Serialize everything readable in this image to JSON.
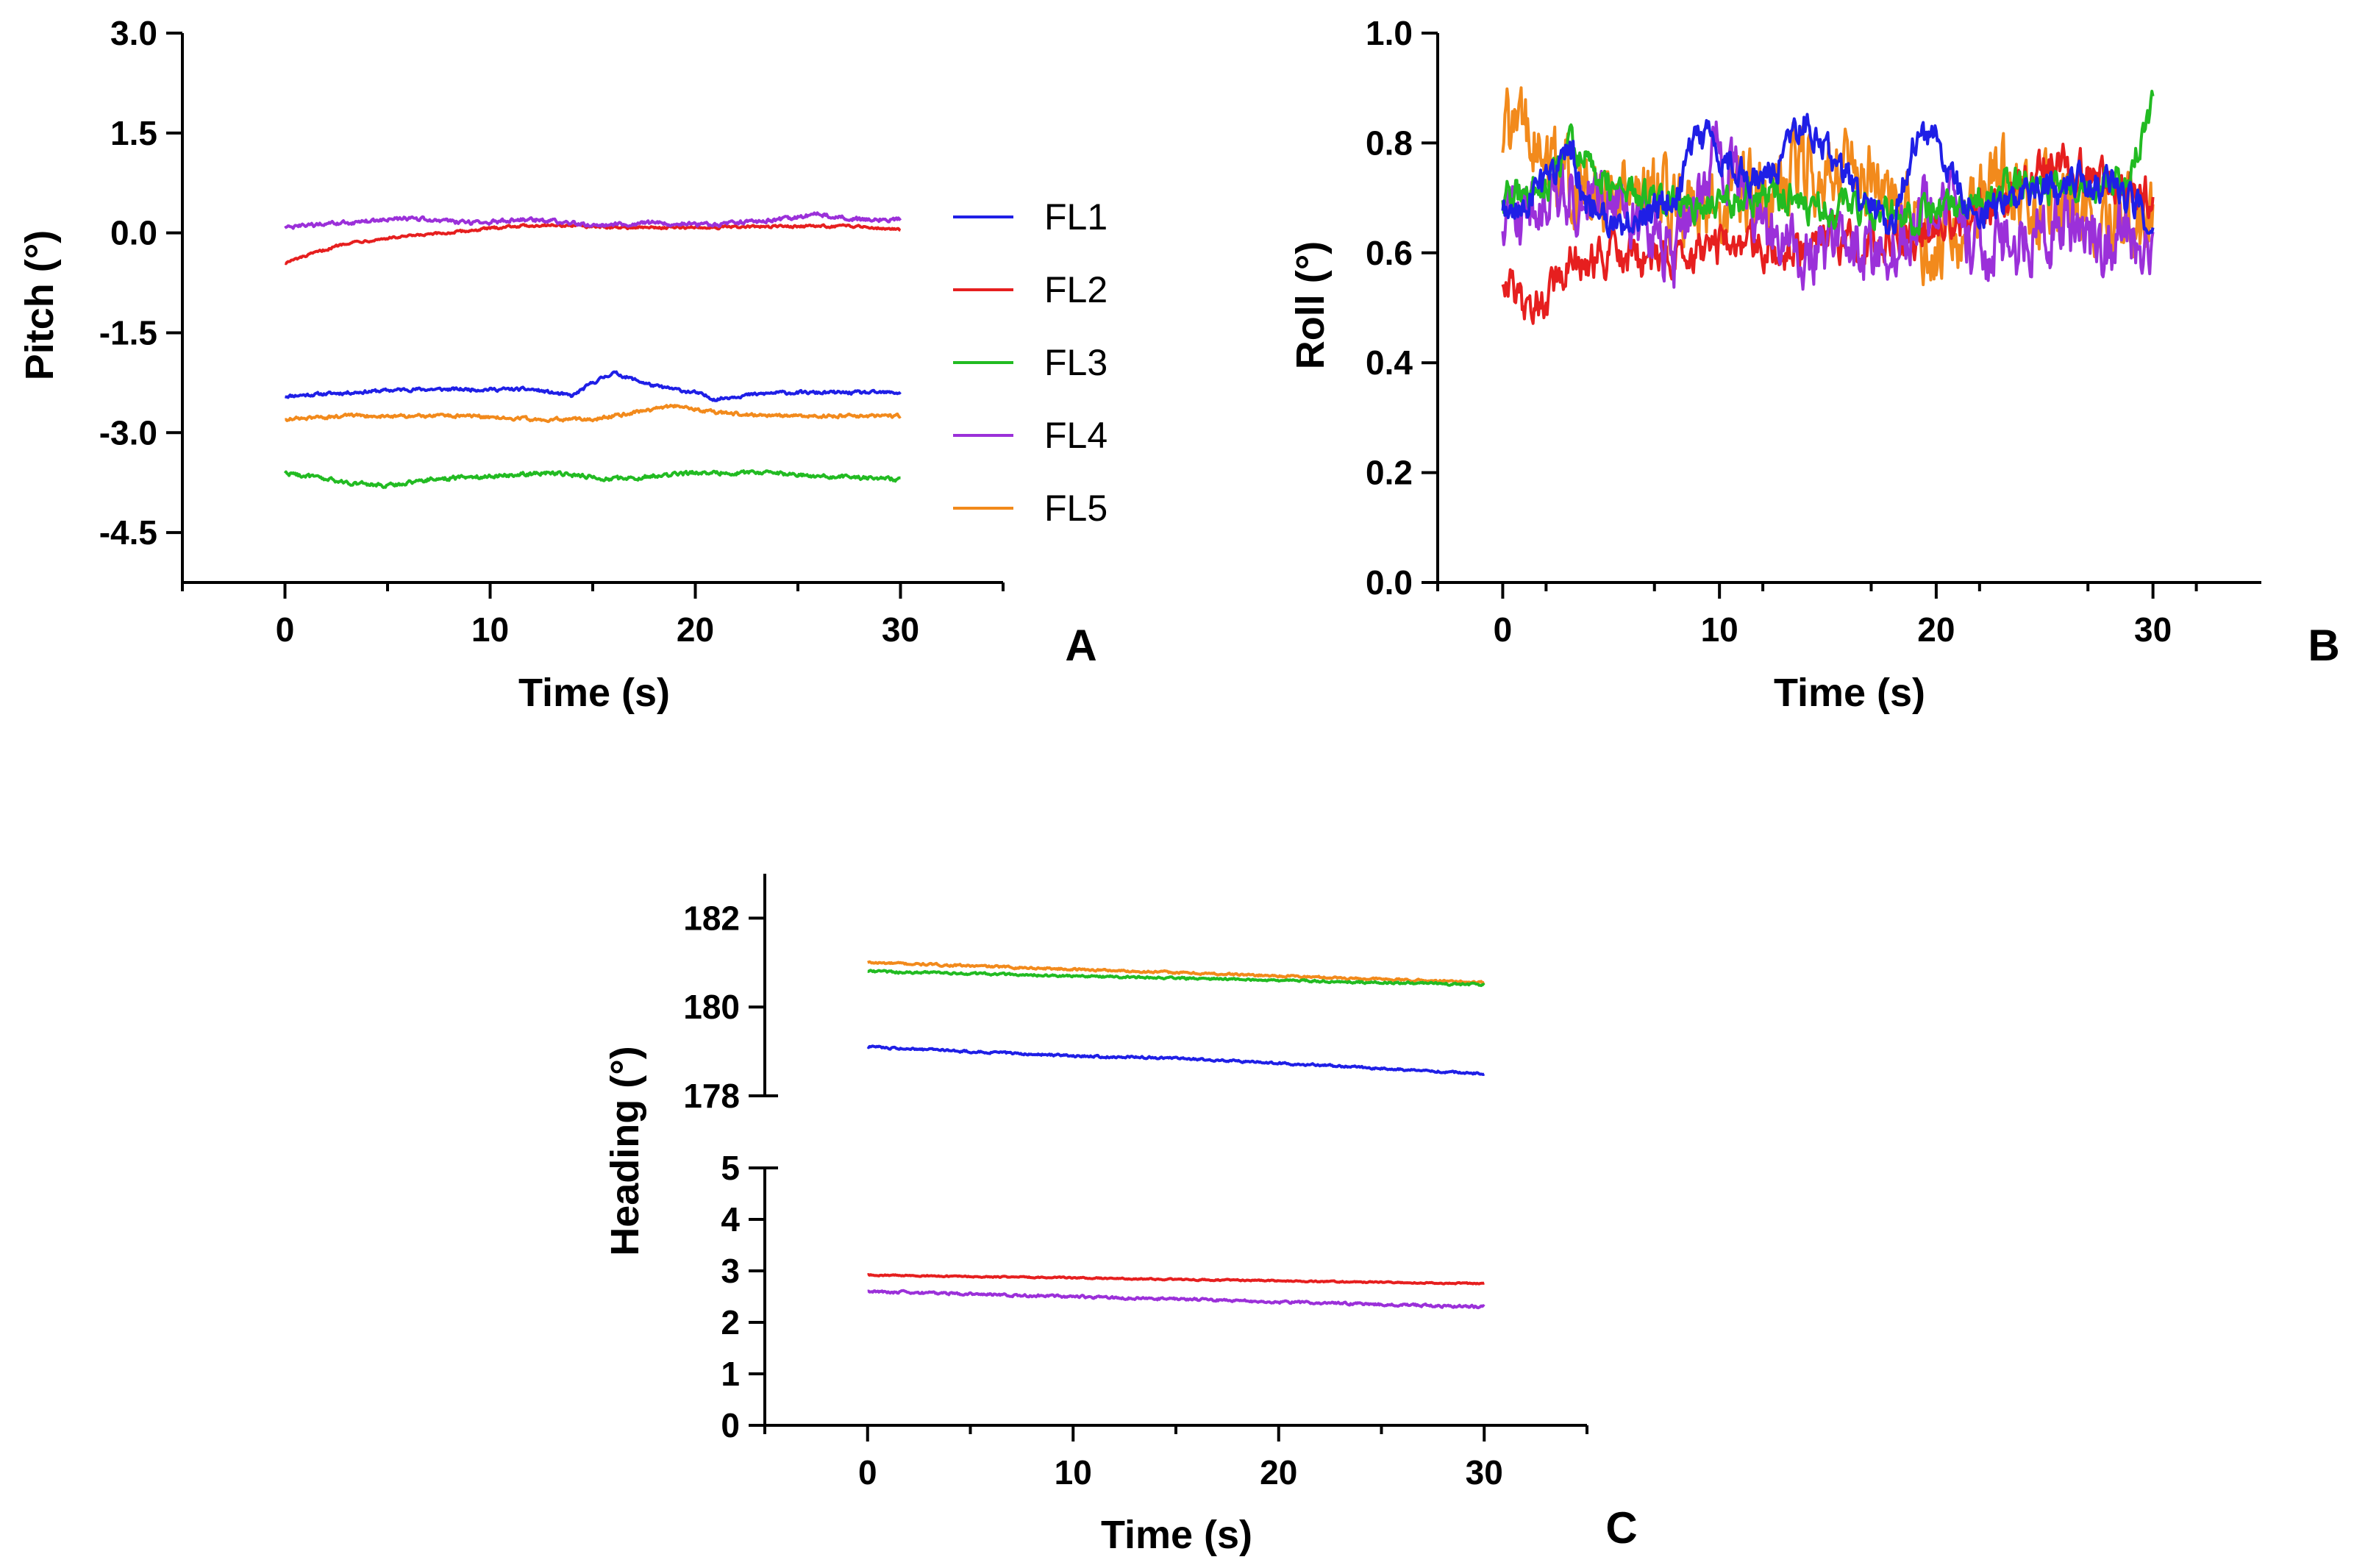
{
  "chart_data": [
    {
      "id": "A",
      "type": "line",
      "panel_label": "A",
      "xlabel": "Time (s)",
      "ylabel": "Pitch (°)",
      "xlim": [
        -5,
        35
      ],
      "ylim": [
        -5.25,
        3.0
      ],
      "x_ticks": [
        0,
        10,
        20,
        30
      ],
      "x_tick_labels": [
        "0",
        "10",
        "20",
        "30"
      ],
      "y_ticks": [
        3.0,
        1.5,
        0.0,
        -1.5,
        -3.0,
        -4.5
      ],
      "y_tick_labels": [
        "3.0",
        "1.5",
        "0.0",
        "-1.5",
        "-3.0",
        "-4.5"
      ],
      "legend": [
        "FL1",
        "FL2",
        "FL3",
        "FL4",
        "FL5"
      ],
      "legend_position": "right",
      "series": [
        {
          "name": "FL1",
          "color": "#1f1fe6",
          "noise": 0.02,
          "points": [
            [
              0,
              -2.45
            ],
            [
              3,
              -2.4
            ],
            [
              6,
              -2.35
            ],
            [
              9,
              -2.35
            ],
            [
              12,
              -2.35
            ],
            [
              14,
              -2.45
            ],
            [
              15,
              -2.25
            ],
            [
              16,
              -2.1
            ],
            [
              17,
              -2.2
            ],
            [
              18,
              -2.3
            ],
            [
              19,
              -2.35
            ],
            [
              20,
              -2.4
            ],
            [
              21,
              -2.5
            ],
            [
              22,
              -2.45
            ],
            [
              24,
              -2.4
            ],
            [
              27,
              -2.4
            ],
            [
              30,
              -2.4
            ]
          ]
        },
        {
          "name": "FL2",
          "color": "#e61f1f",
          "noise": 0.015,
          "points": [
            [
              0,
              -0.45
            ],
            [
              1,
              -0.35
            ],
            [
              2,
              -0.25
            ],
            [
              3,
              -0.15
            ],
            [
              5,
              -0.08
            ],
            [
              8,
              0.0
            ],
            [
              11,
              0.1
            ],
            [
              13,
              0.12
            ],
            [
              16,
              0.08
            ],
            [
              20,
              0.08
            ],
            [
              25,
              0.1
            ],
            [
              28,
              0.1
            ],
            [
              30,
              0.05
            ]
          ]
        },
        {
          "name": "FL3",
          "color": "#22bb22",
          "noise": 0.025,
          "points": [
            [
              0,
              -3.6
            ],
            [
              1,
              -3.65
            ],
            [
              3,
              -3.75
            ],
            [
              5,
              -3.8
            ],
            [
              7,
              -3.7
            ],
            [
              10,
              -3.65
            ],
            [
              13,
              -3.6
            ],
            [
              16,
              -3.7
            ],
            [
              18,
              -3.65
            ],
            [
              20,
              -3.6
            ],
            [
              23,
              -3.6
            ],
            [
              26,
              -3.65
            ],
            [
              30,
              -3.7
            ]
          ]
        },
        {
          "name": "FL4",
          "color": "#9b30d9",
          "noise": 0.025,
          "points": [
            [
              0,
              0.08
            ],
            [
              3,
              0.15
            ],
            [
              6,
              0.22
            ],
            [
              9,
              0.15
            ],
            [
              12,
              0.2
            ],
            [
              15,
              0.12
            ],
            [
              18,
              0.15
            ],
            [
              21,
              0.12
            ],
            [
              24,
              0.2
            ],
            [
              26,
              0.28
            ],
            [
              28,
              0.2
            ],
            [
              30,
              0.2
            ]
          ]
        },
        {
          "name": "FL5",
          "color": "#f28a1c",
          "noise": 0.02,
          "points": [
            [
              0,
              -2.8
            ],
            [
              3,
              -2.75
            ],
            [
              6,
              -2.75
            ],
            [
              9,
              -2.75
            ],
            [
              12,
              -2.8
            ],
            [
              15,
              -2.8
            ],
            [
              17,
              -2.7
            ],
            [
              19,
              -2.6
            ],
            [
              21,
              -2.7
            ],
            [
              24,
              -2.75
            ],
            [
              27,
              -2.75
            ],
            [
              30,
              -2.75
            ]
          ]
        }
      ]
    },
    {
      "id": "B",
      "type": "line",
      "panel_label": "B",
      "xlabel": "Time (s)",
      "ylabel": "Roll (°)",
      "xlim": [
        -3,
        35
      ],
      "ylim": [
        0.0,
        1.0
      ],
      "x_ticks": [
        0,
        10,
        20,
        30
      ],
      "x_tick_labels": [
        "0",
        "10",
        "20",
        "30"
      ],
      "y_ticks": [
        1.0,
        0.8,
        0.6,
        0.4,
        0.2,
        0.0
      ],
      "y_tick_labels": [
        "1.0",
        "0.8",
        "0.6",
        "0.4",
        "0.2",
        "0.0"
      ],
      "series": [
        {
          "name": "FL5",
          "color": "#f28a1c",
          "noise": 0.06,
          "points": [
            [
              0,
              0.8
            ],
            [
              1,
              0.82
            ],
            [
              2,
              0.75
            ],
            [
              4,
              0.72
            ],
            [
              6,
              0.68
            ],
            [
              8,
              0.7
            ],
            [
              10,
              0.68
            ],
            [
              12,
              0.72
            ],
            [
              14,
              0.75
            ],
            [
              16,
              0.78
            ],
            [
              18,
              0.68
            ],
            [
              20,
              0.62
            ],
            [
              22,
              0.7
            ],
            [
              23,
              0.78
            ],
            [
              24,
              0.68
            ],
            [
              26,
              0.7
            ],
            [
              28,
              0.65
            ],
            [
              30,
              0.66
            ]
          ]
        },
        {
          "name": "FL2",
          "color": "#e61f1f",
          "noise": 0.03,
          "points": [
            [
              0,
              0.55
            ],
            [
              1,
              0.5
            ],
            [
              2,
              0.52
            ],
            [
              3,
              0.58
            ],
            [
              5,
              0.6
            ],
            [
              7,
              0.58
            ],
            [
              9,
              0.6
            ],
            [
              11,
              0.62
            ],
            [
              13,
              0.6
            ],
            [
              15,
              0.62
            ],
            [
              17,
              0.62
            ],
            [
              19,
              0.63
            ],
            [
              21,
              0.66
            ],
            [
              23,
              0.7
            ],
            [
              25,
              0.76
            ],
            [
              27,
              0.75
            ],
            [
              30,
              0.7
            ]
          ]
        },
        {
          "name": "FL4",
          "color": "#9b30d9",
          "noise": 0.05,
          "points": [
            [
              0,
              0.65
            ],
            [
              2,
              0.7
            ],
            [
              4,
              0.72
            ],
            [
              6,
              0.65
            ],
            [
              8,
              0.6
            ],
            [
              10,
              0.8
            ],
            [
              12,
              0.65
            ],
            [
              14,
              0.6
            ],
            [
              16,
              0.6
            ],
            [
              18,
              0.62
            ],
            [
              20,
              0.7
            ],
            [
              22,
              0.6
            ],
            [
              24,
              0.62
            ],
            [
              26,
              0.65
            ],
            [
              28,
              0.62
            ],
            [
              30,
              0.62
            ]
          ]
        },
        {
          "name": "FL3",
          "color": "#22bb22",
          "noise": 0.025,
          "points": [
            [
              0,
              0.7
            ],
            [
              2,
              0.72
            ],
            [
              3,
              0.8
            ],
            [
              5,
              0.72
            ],
            [
              7,
              0.7
            ],
            [
              9,
              0.68
            ],
            [
              11,
              0.7
            ],
            [
              13,
              0.7
            ],
            [
              15,
              0.68
            ],
            [
              17,
              0.68
            ],
            [
              19,
              0.66
            ],
            [
              21,
              0.68
            ],
            [
              23,
              0.72
            ],
            [
              25,
              0.72
            ],
            [
              27,
              0.72
            ],
            [
              29,
              0.75
            ],
            [
              30,
              0.86
            ]
          ]
        },
        {
          "name": "FL1",
          "color": "#1f1fe6",
          "noise": 0.025,
          "points": [
            [
              0,
              0.68
            ],
            [
              2,
              0.72
            ],
            [
              3,
              0.8
            ],
            [
              4,
              0.68
            ],
            [
              6,
              0.65
            ],
            [
              8,
              0.7
            ],
            [
              9,
              0.82
            ],
            [
              10,
              0.78
            ],
            [
              12,
              0.72
            ],
            [
              14,
              0.84
            ],
            [
              15,
              0.78
            ],
            [
              17,
              0.68
            ],
            [
              18,
              0.65
            ],
            [
              19,
              0.8
            ],
            [
              20,
              0.82
            ],
            [
              21,
              0.72
            ],
            [
              22,
              0.68
            ],
            [
              24,
              0.7
            ],
            [
              26,
              0.73
            ],
            [
              28,
              0.72
            ],
            [
              30,
              0.66
            ]
          ]
        }
      ]
    },
    {
      "id": "C",
      "type": "line",
      "panel_label": "C",
      "xlabel": "Time (s)",
      "ylabel": "Heading (°)",
      "xlim": [
        -5,
        35
      ],
      "broken_axis": true,
      "ylim_upper": [
        178,
        183
      ],
      "ylim_lower": [
        0,
        5
      ],
      "x_ticks": [
        0,
        10,
        20,
        30
      ],
      "x_tick_labels": [
        "0",
        "10",
        "20",
        "30"
      ],
      "y_ticks_upper": [
        182,
        180,
        178
      ],
      "y_tick_labels_upper": [
        "182",
        "180",
        "178"
      ],
      "y_ticks_lower": [
        5,
        4,
        3,
        2,
        1,
        0
      ],
      "y_tick_labels_lower": [
        "5",
        "4",
        "3",
        "2",
        "1",
        "0"
      ],
      "series": [
        {
          "name": "FL5",
          "color": "#f28a1c",
          "noise": 0.02,
          "segment": "upper",
          "points": [
            [
              0,
              181.0
            ],
            [
              30,
              180.55
            ]
          ]
        },
        {
          "name": "FL3",
          "color": "#22bb22",
          "noise": 0.02,
          "segment": "upper",
          "points": [
            [
              0,
              180.8
            ],
            [
              30,
              180.5
            ]
          ]
        },
        {
          "name": "FL1",
          "color": "#1f1fe6",
          "noise": 0.02,
          "segment": "upper",
          "points": [
            [
              0,
              179.1
            ],
            [
              10,
              178.9
            ],
            [
              15,
              178.85
            ],
            [
              30,
              178.5
            ]
          ]
        },
        {
          "name": "FL2",
          "color": "#e61f1f",
          "noise": 0.01,
          "segment": "lower",
          "points": [
            [
              0,
              2.92
            ],
            [
              30,
              2.75
            ]
          ]
        },
        {
          "name": "FL4",
          "color": "#9b30d9",
          "noise": 0.02,
          "segment": "lower",
          "points": [
            [
              0,
              2.6
            ],
            [
              30,
              2.3
            ]
          ]
        }
      ]
    }
  ]
}
